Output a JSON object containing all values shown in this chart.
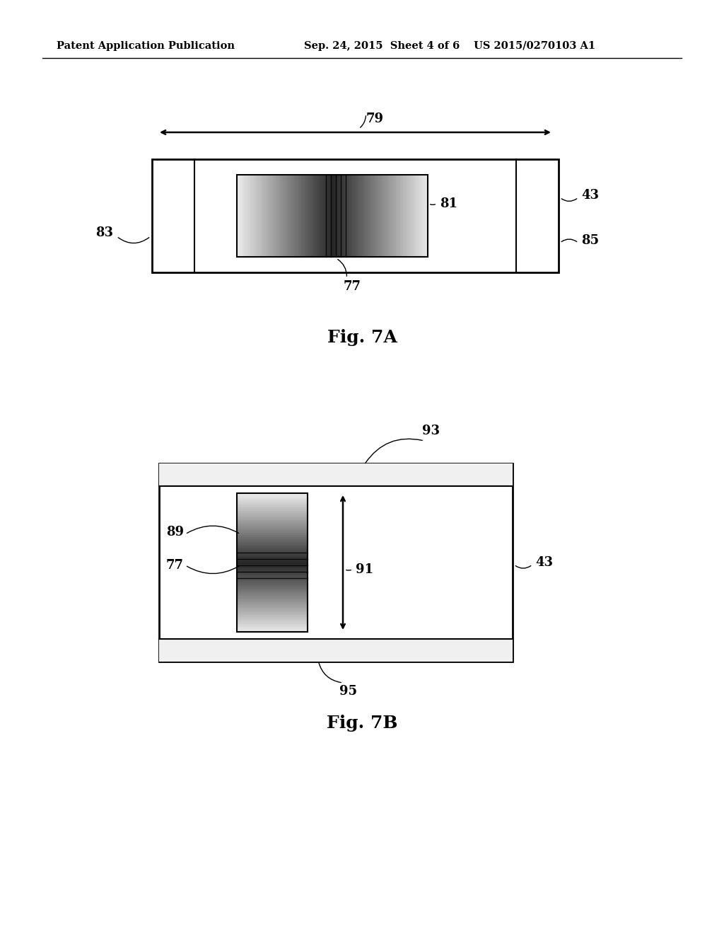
{
  "bg_color": "#ffffff",
  "header_left": "Patent Application Publication",
  "header_mid": "Sep. 24, 2015  Sheet 4 of 6",
  "header_right": "US 2015/0270103 A1",
  "fig7a_caption": "Fig. 7A",
  "fig7b_caption": "Fig. 7B"
}
